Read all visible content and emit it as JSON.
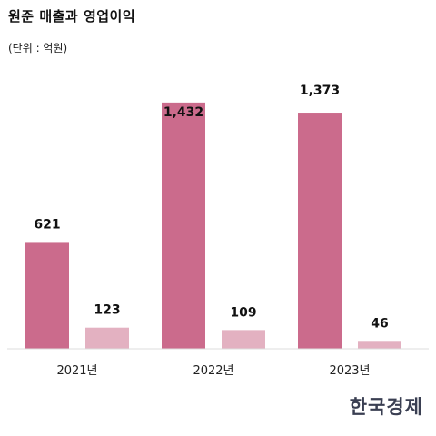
{
  "header": {
    "title": "원준 매출과 영업이익",
    "unit": "(단위 : 억원)"
  },
  "brand": {
    "logo_text": "한국경제"
  },
  "colors": {
    "primary_bar": "#cb6b8c",
    "secondary_bar": "#e3b1c1",
    "axis": "#dddddd",
    "label": "#111111"
  },
  "chart_data": {
    "type": "bar",
    "title": "원준 매출과 영업이익",
    "subtitle": "(단위 : 억원)",
    "categories": [
      "2021년",
      "2022년",
      "2023년"
    ],
    "series": [
      {
        "values": [
          621,
          1432,
          1373
        ],
        "labels": [
          "621",
          "1,432",
          "1,373"
        ]
      },
      {
        "values": [
          123,
          109,
          46
        ],
        "labels": [
          "123",
          "109",
          "46"
        ]
      }
    ],
    "ylim": [
      0,
      1500
    ],
    "grid": false,
    "legend": "none"
  }
}
